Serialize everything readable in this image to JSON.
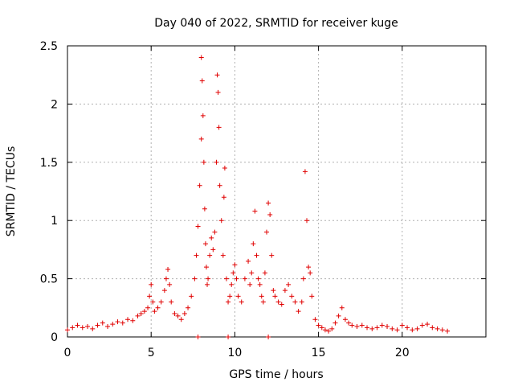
{
  "chart_data": {
    "type": "scatter",
    "title": "Day 040 of 2022, SRMTID for receiver kuge",
    "xlabel": "GPS time / hours",
    "ylabel": "SRMTID / TECUs",
    "xlim": [
      0,
      25
    ],
    "ylim": [
      0,
      2.5
    ],
    "x_ticks": [
      "0",
      "5",
      "10",
      "15",
      "20"
    ],
    "y_ticks": [
      "0",
      "0.5",
      "1",
      "1.5",
      "2",
      "2.5"
    ],
    "grid": true,
    "marker": "+",
    "series": [
      {
        "name": "SRMTID",
        "color": "#e00000",
        "x": [
          0.0,
          0.3,
          0.6,
          0.9,
          1.2,
          1.5,
          1.8,
          2.1,
          2.4,
          2.7,
          3.0,
          3.3,
          3.6,
          3.9,
          4.2,
          4.4,
          4.6,
          4.8,
          4.9,
          5.0,
          5.1,
          5.2,
          5.4,
          5.6,
          5.8,
          5.9,
          6.0,
          6.1,
          6.2,
          6.4,
          6.6,
          6.8,
          7.0,
          7.2,
          7.4,
          7.6,
          7.7,
          7.8,
          7.9,
          8.0,
          8.0,
          8.05,
          8.1,
          8.15,
          8.2,
          8.25,
          8.3,
          8.35,
          8.4,
          8.5,
          8.6,
          8.7,
          8.8,
          8.9,
          8.95,
          9.0,
          9.05,
          9.1,
          9.2,
          9.3,
          9.35,
          9.4,
          9.5,
          9.6,
          9.7,
          9.8,
          9.9,
          10.0,
          10.1,
          10.2,
          10.4,
          10.6,
          10.8,
          10.9,
          11.0,
          11.1,
          11.2,
          11.3,
          11.4,
          11.5,
          11.6,
          11.7,
          11.8,
          11.9,
          12.0,
          12.1,
          12.2,
          12.3,
          12.4,
          12.6,
          12.8,
          13.0,
          13.2,
          13.4,
          13.6,
          13.8,
          14.0,
          14.1,
          14.2,
          14.3,
          14.4,
          14.5,
          14.6,
          14.8,
          15.0,
          15.2,
          15.4,
          15.6,
          15.8,
          16.0,
          16.2,
          16.4,
          16.6,
          16.8,
          17.0,
          17.3,
          17.6,
          17.9,
          18.2,
          18.5,
          18.8,
          19.1,
          19.4,
          19.7,
          20.0,
          20.3,
          20.6,
          20.9,
          21.2,
          21.5,
          21.8,
          22.1,
          22.4,
          22.7,
          7.8,
          9.6,
          12.0
        ],
        "y": [
          0.06,
          0.08,
          0.1,
          0.08,
          0.09,
          0.07,
          0.1,
          0.12,
          0.09,
          0.11,
          0.13,
          0.12,
          0.15,
          0.14,
          0.18,
          0.2,
          0.22,
          0.25,
          0.35,
          0.45,
          0.3,
          0.22,
          0.25,
          0.3,
          0.4,
          0.5,
          0.58,
          0.45,
          0.3,
          0.2,
          0.18,
          0.15,
          0.2,
          0.25,
          0.35,
          0.5,
          0.7,
          0.95,
          1.3,
          1.7,
          2.4,
          2.2,
          1.9,
          1.5,
          1.1,
          0.8,
          0.6,
          0.45,
          0.5,
          0.7,
          0.85,
          0.75,
          0.9,
          1.5,
          2.25,
          2.1,
          1.8,
          1.3,
          1.0,
          0.7,
          1.2,
          1.45,
          0.5,
          0.3,
          0.35,
          0.45,
          0.55,
          0.62,
          0.5,
          0.35,
          0.3,
          0.5,
          0.65,
          0.45,
          0.55,
          0.8,
          1.08,
          0.7,
          0.5,
          0.45,
          0.35,
          0.3,
          0.55,
          0.9,
          1.15,
          1.05,
          0.7,
          0.4,
          0.35,
          0.3,
          0.28,
          0.4,
          0.45,
          0.35,
          0.3,
          0.22,
          0.3,
          0.5,
          1.42,
          1.0,
          0.6,
          0.55,
          0.35,
          0.15,
          0.1,
          0.08,
          0.06,
          0.05,
          0.07,
          0.12,
          0.18,
          0.25,
          0.15,
          0.12,
          0.1,
          0.09,
          0.1,
          0.08,
          0.07,
          0.08,
          0.1,
          0.09,
          0.07,
          0.06,
          0.1,
          0.08,
          0.06,
          0.07,
          0.1,
          0.11,
          0.08,
          0.07,
          0.06,
          0.05,
          0.0,
          0.0,
          0.0
        ]
      }
    ]
  }
}
